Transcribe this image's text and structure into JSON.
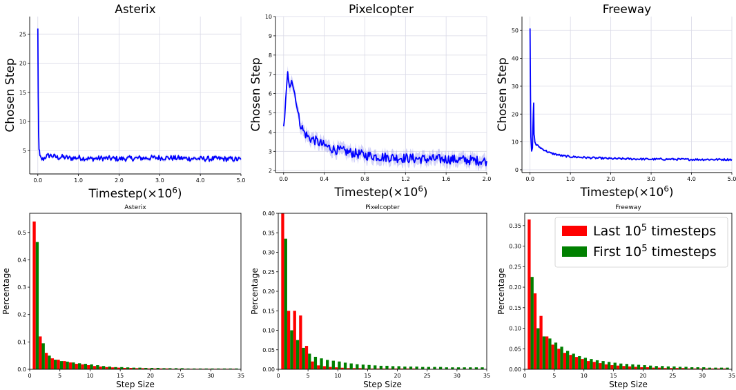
{
  "colors": {
    "line": "#0000ff",
    "band": "#9c9cf0",
    "last": "#ff0000",
    "first": "#008000",
    "grid": "#d9d9e6",
    "axis": "#000000"
  },
  "legend": {
    "placement": "top-right",
    "panel": "Freeway",
    "entries": [
      {
        "base": "Last 10",
        "sup": "5",
        "tail": " timesteps",
        "series": "last"
      },
      {
        "base": "First 10",
        "sup": "5",
        "tail": " timesteps",
        "series": "first"
      }
    ]
  },
  "chart_data": [
    {
      "type": "line",
      "title": "Asterix",
      "xlabel": "Timestep(×10",
      "xlabel_sup": "6",
      "xlabel_tail": ")",
      "ylabel": "Chosen Step",
      "xlim": [
        -0.2,
        5.0
      ],
      "ylim": [
        1,
        28
      ],
      "xticks": [
        0,
        1,
        2,
        3,
        4,
        5
      ],
      "xtick_labels": [
        "0.0",
        "1.0",
        "2.0",
        "3.0",
        "4.0",
        "5.0"
      ],
      "yticks": [
        5,
        10,
        15,
        20,
        25
      ],
      "grid": true,
      "series": [
        {
          "x": [
            0,
            0.01,
            0.02,
            0.03,
            0.05,
            0.08,
            0.12,
            0.2,
            0.3,
            0.4,
            0.5,
            0.6,
            0.8,
            1.0,
            1.3,
            1.6,
            2.0,
            2.5,
            3.0,
            3.5,
            4.0,
            4.5,
            5.0
          ],
          "y": [
            25.8,
            14.0,
            8.0,
            5.5,
            4.0,
            3.6,
            3.5,
            4.0,
            4.2,
            4.0,
            3.8,
            3.9,
            3.7,
            3.8,
            3.6,
            3.7,
            3.6,
            3.7,
            3.8,
            3.7,
            3.6,
            3.6,
            3.5
          ],
          "noise": 0.45,
          "band": 0.3
        }
      ]
    },
    {
      "type": "line",
      "title": "Pixelcopter",
      "xlabel": "Timestep(×10",
      "xlabel_sup": "6",
      "xlabel_tail": ")",
      "ylabel": "Chosen Step",
      "xlim": [
        -0.08,
        2.0
      ],
      "ylim": [
        1.9,
        10
      ],
      "xticks": [
        0,
        0.4,
        0.8,
        1.2,
        1.6,
        2.0
      ],
      "xtick_labels": [
        "0.0",
        "0.4",
        "0.8",
        "1.2",
        "1.6",
        "2.0"
      ],
      "yticks": [
        2,
        3,
        4,
        5,
        6,
        7,
        8,
        9,
        10
      ],
      "grid": true,
      "series": [
        {
          "x": [
            0,
            0.02,
            0.04,
            0.06,
            0.08,
            0.1,
            0.12,
            0.14,
            0.16,
            0.2,
            0.25,
            0.3,
            0.4,
            0.5,
            0.6,
            0.7,
            0.8,
            0.9,
            1.0,
            1.2,
            1.4,
            1.6,
            1.8,
            2.0
          ],
          "y": [
            4.2,
            5.5,
            7.0,
            6.5,
            6.8,
            6.2,
            5.8,
            5.0,
            4.5,
            4.0,
            3.7,
            3.6,
            3.3,
            3.1,
            3.0,
            2.9,
            2.8,
            2.75,
            2.7,
            2.65,
            2.6,
            2.6,
            2.55,
            2.5
          ],
          "noise": 0.25,
          "band": 0.3
        }
      ]
    },
    {
      "type": "line",
      "title": "Freeway",
      "xlabel": "Timestep(×10",
      "xlabel_sup": "6",
      "xlabel_tail": ")",
      "ylabel": "Chosen Step",
      "xlim": [
        -0.2,
        5.0
      ],
      "ylim": [
        -1,
        55
      ],
      "xticks": [
        0,
        1,
        2,
        3,
        4,
        5
      ],
      "xtick_labels": [
        "0.0",
        "1.0",
        "2.0",
        "3.0",
        "4.0",
        "5.0"
      ],
      "yticks": [
        0,
        10,
        20,
        30,
        40,
        50
      ],
      "grid": true,
      "series": [
        {
          "x": [
            0,
            0.01,
            0.02,
            0.04,
            0.06,
            0.08,
            0.09,
            0.1,
            0.12,
            0.15,
            0.2,
            0.3,
            0.5,
            0.8,
            1.0,
            1.5,
            2.0,
            2.5,
            3.0,
            3.5,
            4.0,
            4.5,
            5.0
          ],
          "y": [
            50.5,
            28.0,
            12.0,
            7.0,
            8.0,
            20.0,
            24.0,
            13.0,
            10.0,
            9.0,
            8.5,
            7.5,
            6.0,
            5.0,
            4.7,
            4.3,
            4.0,
            3.9,
            3.8,
            3.8,
            3.7,
            3.7,
            3.7
          ],
          "noise": 0.35,
          "band": 0.4
        }
      ]
    },
    {
      "type": "bar",
      "title": "Asterix",
      "xlabel": "Step Size",
      "ylabel": "Percentage",
      "xlim": [
        0,
        35
      ],
      "ylim": [
        0,
        0.57
      ],
      "xticks": [
        0,
        5,
        10,
        15,
        20,
        25,
        30,
        35
      ],
      "yticks": [
        0.0,
        0.1,
        0.2,
        0.3,
        0.4,
        0.5
      ],
      "ytick_labels": [
        "0.0",
        "0.1",
        "0.2",
        "0.3",
        "0.4",
        "0.5"
      ],
      "grid": false,
      "bins": [
        1,
        2,
        3,
        4,
        5,
        6,
        7,
        8,
        9,
        10,
        11,
        12,
        13,
        14,
        15,
        16,
        17,
        18,
        19,
        20,
        21,
        22,
        23,
        24,
        25,
        26,
        27,
        28,
        29,
        30,
        31,
        32,
        33,
        34
      ],
      "series": [
        {
          "name": "Last 10^5 timesteps",
          "key": "last",
          "values": [
            0.54,
            0.12,
            0.06,
            0.04,
            0.035,
            0.03,
            0.025,
            0.02,
            0.018,
            0.015,
            0.012,
            0.01,
            0.008,
            0.007,
            0.006,
            0.005,
            0.005,
            0.004,
            0.004,
            0.003,
            0.003,
            0.003,
            0.003,
            0.002,
            0.002,
            0.002,
            0.002,
            0.002,
            0.002,
            0.002,
            0.002,
            0.002,
            0.002,
            0.002
          ]
        },
        {
          "name": "First 10^5 timesteps",
          "key": "first",
          "values": [
            0.465,
            0.095,
            0.05,
            0.035,
            0.03,
            0.028,
            0.025,
            0.022,
            0.02,
            0.018,
            0.015,
            0.012,
            0.01,
            0.008,
            0.008,
            0.007,
            0.006,
            0.006,
            0.005,
            0.005,
            0.005,
            0.004,
            0.004,
            0.004,
            0.004,
            0.003,
            0.003,
            0.003,
            0.003,
            0.003,
            0.003,
            0.003,
            0.003,
            0.003
          ]
        }
      ]
    },
    {
      "type": "bar",
      "title": "Pixelcopter",
      "xlabel": "Step Size",
      "ylabel": "Percentage",
      "xlim": [
        0,
        35
      ],
      "ylim": [
        0,
        0.4
      ],
      "xticks": [
        0,
        5,
        10,
        15,
        20,
        25,
        30,
        35
      ],
      "yticks": [
        0.0,
        0.05,
        0.1,
        0.15,
        0.2,
        0.25,
        0.3,
        0.35,
        0.4
      ],
      "ytick_labels": [
        "0.00",
        "0.05",
        "0.10",
        "0.15",
        "0.20",
        "0.25",
        "0.30",
        "0.35",
        "0.40"
      ],
      "grid": false,
      "bins": [
        1,
        2,
        3,
        4,
        5,
        6,
        7,
        8,
        9,
        10,
        11,
        12,
        13,
        14,
        15,
        16,
        17,
        18,
        19,
        20,
        21,
        22,
        23,
        24,
        25,
        26,
        27,
        28,
        29,
        30,
        31,
        32,
        33,
        34
      ],
      "series": [
        {
          "name": "Last 10^5 timesteps",
          "key": "last",
          "values": [
            0.4,
            0.15,
            0.15,
            0.138,
            0.06,
            0.02,
            0.01,
            0.008,
            0.006,
            0.005,
            0.004,
            0.003,
            0.003,
            0.003,
            0.002,
            0.002,
            0.002,
            0.002,
            0.002,
            0.002,
            0.002,
            0.002,
            0.002,
            0.001,
            0.001,
            0.001,
            0.001,
            0.001,
            0.001,
            0.001,
            0.001,
            0.001,
            0.001,
            0.001
          ]
        },
        {
          "name": "First 10^5 timesteps",
          "key": "first",
          "values": [
            0.335,
            0.1,
            0.075,
            0.055,
            0.04,
            0.032,
            0.028,
            0.024,
            0.022,
            0.02,
            0.017,
            0.015,
            0.013,
            0.012,
            0.011,
            0.01,
            0.009,
            0.009,
            0.008,
            0.008,
            0.007,
            0.007,
            0.007,
            0.006,
            0.006,
            0.006,
            0.006,
            0.005,
            0.005,
            0.005,
            0.005,
            0.005,
            0.005,
            0.005
          ]
        }
      ]
    },
    {
      "type": "bar",
      "title": "Freeway",
      "xlabel": "Step Size",
      "ylabel": "Percentage",
      "xlim": [
        0,
        35
      ],
      "ylim": [
        0,
        0.38
      ],
      "xticks": [
        0,
        5,
        10,
        15,
        20,
        25,
        30,
        35
      ],
      "yticks": [
        0.0,
        0.05,
        0.1,
        0.15,
        0.2,
        0.25,
        0.3,
        0.35
      ],
      "ytick_labels": [
        "0.00",
        "0.05",
        "0.10",
        "0.15",
        "0.20",
        "0.25",
        "0.30",
        "0.35"
      ],
      "grid": false,
      "bins": [
        1,
        2,
        3,
        4,
        5,
        6,
        7,
        8,
        9,
        10,
        11,
        12,
        13,
        14,
        15,
        16,
        17,
        18,
        19,
        20,
        21,
        22,
        23,
        24,
        25,
        26,
        27,
        28,
        29,
        30,
        31,
        32,
        33,
        34
      ],
      "series": [
        {
          "name": "Last 10^5 timesteps",
          "key": "last",
          "values": [
            0.365,
            0.185,
            0.13,
            0.08,
            0.06,
            0.05,
            0.04,
            0.035,
            0.03,
            0.025,
            0.02,
            0.018,
            0.015,
            0.012,
            0.01,
            0.009,
            0.008,
            0.007,
            0.006,
            0.005,
            0.005,
            0.004,
            0.004,
            0.003,
            0.003,
            0.003,
            0.003,
            0.002,
            0.002,
            0.002,
            0.002,
            0.002,
            0.002,
            0.002
          ]
        },
        {
          "name": "First 10^5 timesteps",
          "key": "first",
          "values": [
            0.225,
            0.1,
            0.08,
            0.075,
            0.065,
            0.055,
            0.045,
            0.038,
            0.032,
            0.028,
            0.025,
            0.022,
            0.02,
            0.018,
            0.016,
            0.014,
            0.013,
            0.012,
            0.011,
            0.01,
            0.009,
            0.008,
            0.008,
            0.007,
            0.007,
            0.006,
            0.006,
            0.005,
            0.005,
            0.005,
            0.004,
            0.004,
            0.004,
            0.004
          ]
        }
      ]
    }
  ]
}
